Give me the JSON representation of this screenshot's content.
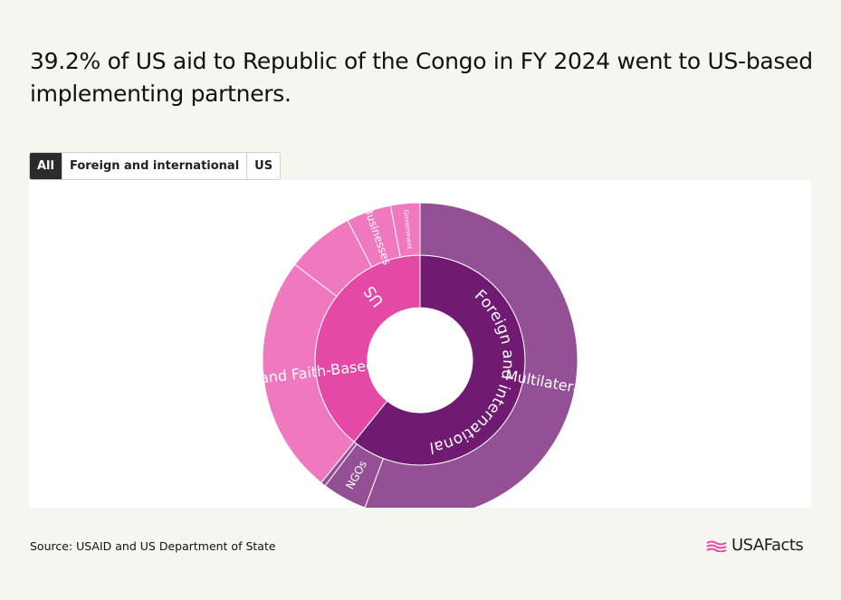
{
  "title": "39.2% of US aid to Republic of the Congo in FY 2024 went to US-based implementing partners.",
  "tabs": [
    {
      "label": "All",
      "active": true
    },
    {
      "label": "Foreign and international",
      "active": false
    },
    {
      "label": "US",
      "active": false
    }
  ],
  "source": "Source: USAID and US Department of State",
  "brand": {
    "name": "USAFacts"
  },
  "colors": {
    "us_inner": "#e44aa5",
    "us_outer": "#ef78bf",
    "foreign_inner": "#701a72",
    "foreign_outer": "#935094"
  },
  "chart_data": {
    "type": "sunburst",
    "title": "39.2% of US aid to Republic of the Congo in FY 2024 went to US-based implementing partners.",
    "inner": [
      {
        "label": "Foreign and international",
        "percent": 60.8
      },
      {
        "label": "US",
        "percent": 39.2
      }
    ],
    "outer": [
      {
        "label": "Multilaterals",
        "parent": "Foreign and international",
        "percent": 55.7
      },
      {
        "label": "NGOs",
        "parent": "Foreign and international",
        "percent": 4.6
      },
      {
        "label": "",
        "parent": "Foreign and international",
        "percent": 0.5
      },
      {
        "label": "Church and Faith-Based",
        "parent": "US",
        "percent": 24.6
      },
      {
        "label": "",
        "parent": "US",
        "percent": 7.0
      },
      {
        "label": "Businesses",
        "parent": "US",
        "percent": 4.6
      },
      {
        "label": "Government",
        "parent": "US",
        "percent": 3.0
      }
    ]
  }
}
